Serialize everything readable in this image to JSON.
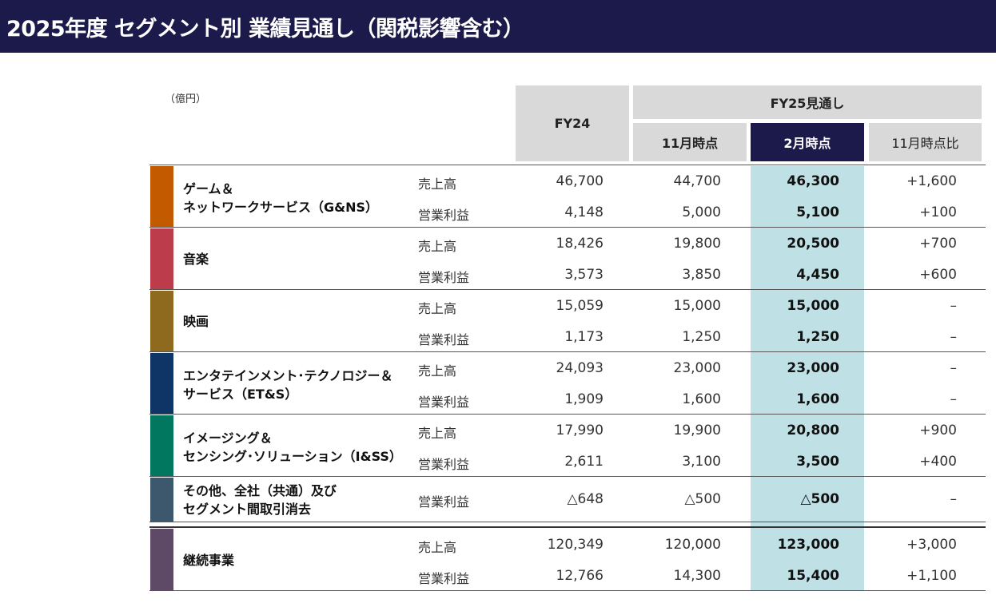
{
  "title": "2025年度 セグメント別 業績見通し（関税影響含む）",
  "unit": "（億円）",
  "headers": {
    "fy24": "FY24",
    "fy25": "FY25見通し",
    "nov": "11月時点",
    "feb": "2月時点",
    "diff": "11月時点比"
  },
  "colors": {
    "title_bar": "#1c1a4a",
    "header_gray": "#d9d9d9",
    "highlight": "#bfe1e5",
    "gns": "#c45a00",
    "music": "#bc3c4c",
    "pictures": "#8e6a1f",
    "ets": "#0e3566",
    "iss": "#00775e",
    "other": "#3d586c",
    "continuing": "#5e4a66"
  },
  "segments": [
    {
      "name1": "ゲーム＆",
      "name2": "ネットワークサービス（G&NS）",
      "rows": [
        {
          "metric": "売上高",
          "fy24": "46,700",
          "nov": "44,700",
          "feb": "46,300",
          "diff": "+1,600"
        },
        {
          "metric": "営業利益",
          "fy24": "4,148",
          "nov": "5,000",
          "feb": "5,100",
          "diff": "+100"
        }
      ]
    },
    {
      "name1": "音楽",
      "rows": [
        {
          "metric": "売上高",
          "fy24": "18,426",
          "nov": "19,800",
          "feb": "20,500",
          "diff": "+700"
        },
        {
          "metric": "営業利益",
          "fy24": "3,573",
          "nov": "3,850",
          "feb": "4,450",
          "diff": "+600"
        }
      ]
    },
    {
      "name1": "映画",
      "rows": [
        {
          "metric": "売上高",
          "fy24": "15,059",
          "nov": "15,000",
          "feb": "15,000",
          "diff": "–"
        },
        {
          "metric": "営業利益",
          "fy24": "1,173",
          "nov": "1,250",
          "feb": "1,250",
          "diff": "–"
        }
      ]
    },
    {
      "name1": "エンタテインメント･テクノロジー＆",
      "name2": "サービス（ET&S）",
      "rows": [
        {
          "metric": "売上高",
          "fy24": "24,093",
          "nov": "23,000",
          "feb": "23,000",
          "diff": "–"
        },
        {
          "metric": "営業利益",
          "fy24": "1,909",
          "nov": "1,600",
          "feb": "1,600",
          "diff": "–"
        }
      ]
    },
    {
      "name1": "イメージング＆",
      "name2": "センシング･ソリューション（I&SS）",
      "rows": [
        {
          "metric": "売上高",
          "fy24": "17,990",
          "nov": "19,900",
          "feb": "20,800",
          "diff": "+900"
        },
        {
          "metric": "営業利益",
          "fy24": "2,611",
          "nov": "3,100",
          "feb": "3,500",
          "diff": "+400"
        }
      ]
    },
    {
      "name1": "その他、全社（共通）及び",
      "name2": "セグメント間取引消去",
      "rows": [
        {
          "metric": "営業利益",
          "fy24": "△648",
          "nov": "△500",
          "feb": "△500",
          "diff": "–"
        }
      ]
    },
    {
      "name1": "継続事業",
      "rows": [
        {
          "metric": "売上高",
          "fy24": "120,349",
          "nov": "120,000",
          "feb": "123,000",
          "diff": "+3,000"
        },
        {
          "metric": "営業利益",
          "fy24": "12,766",
          "nov": "14,300",
          "feb": "15,400",
          "diff": "+1,100"
        }
      ]
    }
  ]
}
